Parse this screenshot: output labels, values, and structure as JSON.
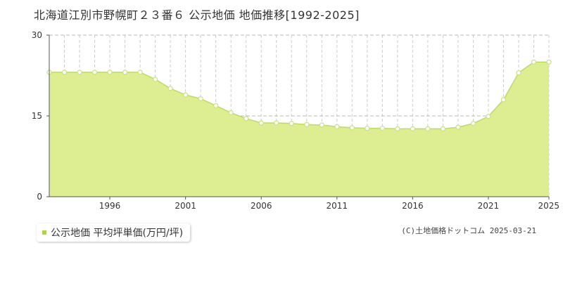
{
  "title": "北海道江別市野幌町２３番６ 公示地価 地価推移[1992-2025]",
  "legend": {
    "label": "公示地価 平均坪単価(万円/坪)"
  },
  "copyright": "(C)土地価格ドットコム 2025-03-21",
  "colors": {
    "fill": "#dced92",
    "line": "#bedd5a",
    "marker_fill": "#ffffff",
    "marker_stroke": "#c8e47a",
    "legend_swatch": "#a8d840",
    "grid_vertical": "#cccccc",
    "grid_horizontal": "#bbbbbb",
    "axis": "#555555"
  },
  "chart_data": {
    "type": "area",
    "x": [
      1992,
      1993,
      1994,
      1995,
      1996,
      1997,
      1998,
      1999,
      2000,
      2001,
      2002,
      2003,
      2004,
      2005,
      2006,
      2007,
      2008,
      2009,
      2010,
      2011,
      2012,
      2013,
      2014,
      2015,
      2016,
      2017,
      2018,
      2019,
      2020,
      2021,
      2022,
      2023,
      2024,
      2025
    ],
    "series": [
      {
        "name": "公示地価 平均坪単価(万円/坪)",
        "values": [
          23.1,
          23.1,
          23.1,
          23.1,
          23.1,
          23.1,
          23.1,
          21.8,
          20.1,
          18.9,
          18.2,
          16.9,
          15.6,
          14.5,
          13.7,
          13.7,
          13.6,
          13.4,
          13.3,
          13.0,
          12.8,
          12.7,
          12.7,
          12.6,
          12.6,
          12.6,
          12.6,
          12.9,
          13.6,
          14.9,
          18.0,
          23.0,
          25.0,
          25.0
        ]
      }
    ],
    "xticks": [
      1996,
      2001,
      2006,
      2011,
      2016,
      2021,
      2025
    ],
    "yticks": [
      0,
      15,
      30
    ],
    "ylim": [
      0,
      30
    ],
    "xlim": [
      1992,
      2025
    ],
    "xlabel": "",
    "ylabel": "",
    "grid": {
      "vertical": "dashed",
      "horizontal": "dashed"
    },
    "legend_position": "bottom-left"
  }
}
